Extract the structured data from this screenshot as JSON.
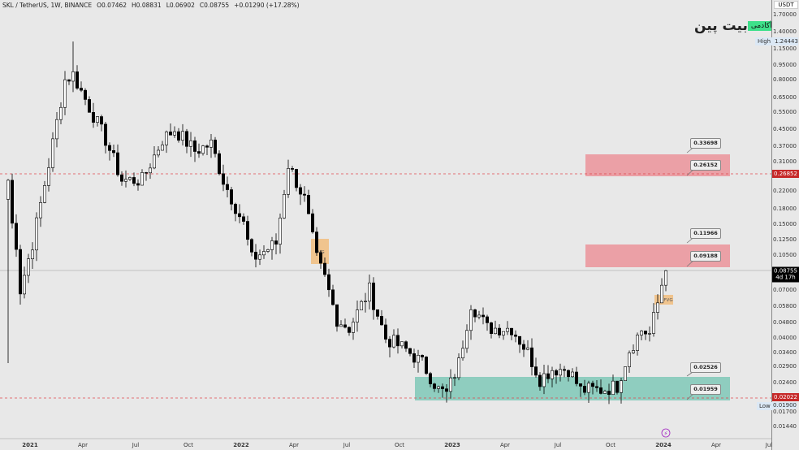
{
  "header": {
    "symbol": "SKL / TetherUS, 1W, BINANCE",
    "open": "O0.07462",
    "high": "H0.08831",
    "low": "L0.06902",
    "close": "C0.08755",
    "change": "+0.01290 (+17.28%)"
  },
  "axis": {
    "currency": "USDT",
    "ticks": [
      "1.70000",
      "1.40000",
      "1.15000",
      "0.95000",
      "0.80000",
      "0.65000",
      "0.55000",
      "0.45000",
      "0.37000",
      "0.31000",
      "0.22000",
      "0.18000",
      "0.15000",
      "0.12500",
      "0.10500",
      "0.07000",
      "0.05800",
      "0.04800",
      "0.04000",
      "0.03400",
      "0.02900",
      "0.02400",
      "0.01900",
      "0.01700",
      "0.01440"
    ],
    "high_label": "High",
    "high_value": "1.24443",
    "low_label": "Low",
    "low_value": "0.01900",
    "current_price": "0.08755",
    "countdown": "4d 17h",
    "line_upper": "0.26852",
    "line_lower": "0.02022"
  },
  "time_axis": [
    "2021",
    "Apr",
    "Jul",
    "Oct",
    "2022",
    "Apr",
    "Jul",
    "Oct",
    "2023",
    "Apr",
    "Jul",
    "Oct",
    "2024",
    "Apr",
    "Jul"
  ],
  "levels": [
    "0.33698",
    "0.26152",
    "0.11966",
    "0.09188",
    "0.02526",
    "0.01959"
  ],
  "fvg_label": "FVG",
  "logo": {
    "name": "بیت پین",
    "tag": "آکادمی"
  },
  "colors": {
    "up": "#ffffff",
    "down": "#000000",
    "resistance": "#eba0a6",
    "support": "#8fcdbf",
    "fvg": "#f0c48e",
    "line": "#e0474c"
  },
  "chart_data": {
    "type": "candlestick",
    "scale": "log",
    "ylim": [
      0.0144,
      1.7
    ],
    "waypoints_week_close": [
      [
        0,
        0.25
      ],
      [
        1,
        0.15
      ],
      [
        2,
        0.12
      ],
      [
        3,
        0.07
      ],
      [
        6,
        0.12
      ],
      [
        10,
        0.3
      ],
      [
        14,
        0.8
      ],
      [
        16,
        0.85
      ],
      [
        18,
        0.7
      ],
      [
        24,
        0.4
      ],
      [
        28,
        0.25
      ],
      [
        33,
        0.25
      ],
      [
        38,
        0.4
      ],
      [
        41,
        0.45
      ],
      [
        46,
        0.35
      ],
      [
        50,
        0.38
      ],
      [
        53,
        0.25
      ],
      [
        58,
        0.15
      ],
      [
        60,
        0.1
      ],
      [
        66,
        0.12
      ],
      [
        69,
        0.3
      ],
      [
        73,
        0.2
      ],
      [
        76,
        0.1
      ],
      [
        78,
        0.08
      ],
      [
        81,
        0.05
      ],
      [
        84,
        0.045
      ],
      [
        89,
        0.07
      ],
      [
        93,
        0.04
      ],
      [
        98,
        0.035
      ],
      [
        102,
        0.03
      ],
      [
        106,
        0.022
      ],
      [
        108,
        0.021
      ],
      [
        111,
        0.03
      ],
      [
        114,
        0.06
      ],
      [
        118,
        0.045
      ],
      [
        124,
        0.045
      ],
      [
        128,
        0.034
      ],
      [
        131,
        0.025
      ],
      [
        134,
        0.028
      ],
      [
        138,
        0.028
      ],
      [
        141,
        0.022
      ],
      [
        146,
        0.022
      ],
      [
        150,
        0.023
      ],
      [
        153,
        0.035
      ],
      [
        156,
        0.044
      ],
      [
        158,
        0.042
      ],
      [
        160,
        0.06
      ],
      [
        161,
        0.075
      ],
      [
        162,
        0.08755
      ]
    ]
  }
}
